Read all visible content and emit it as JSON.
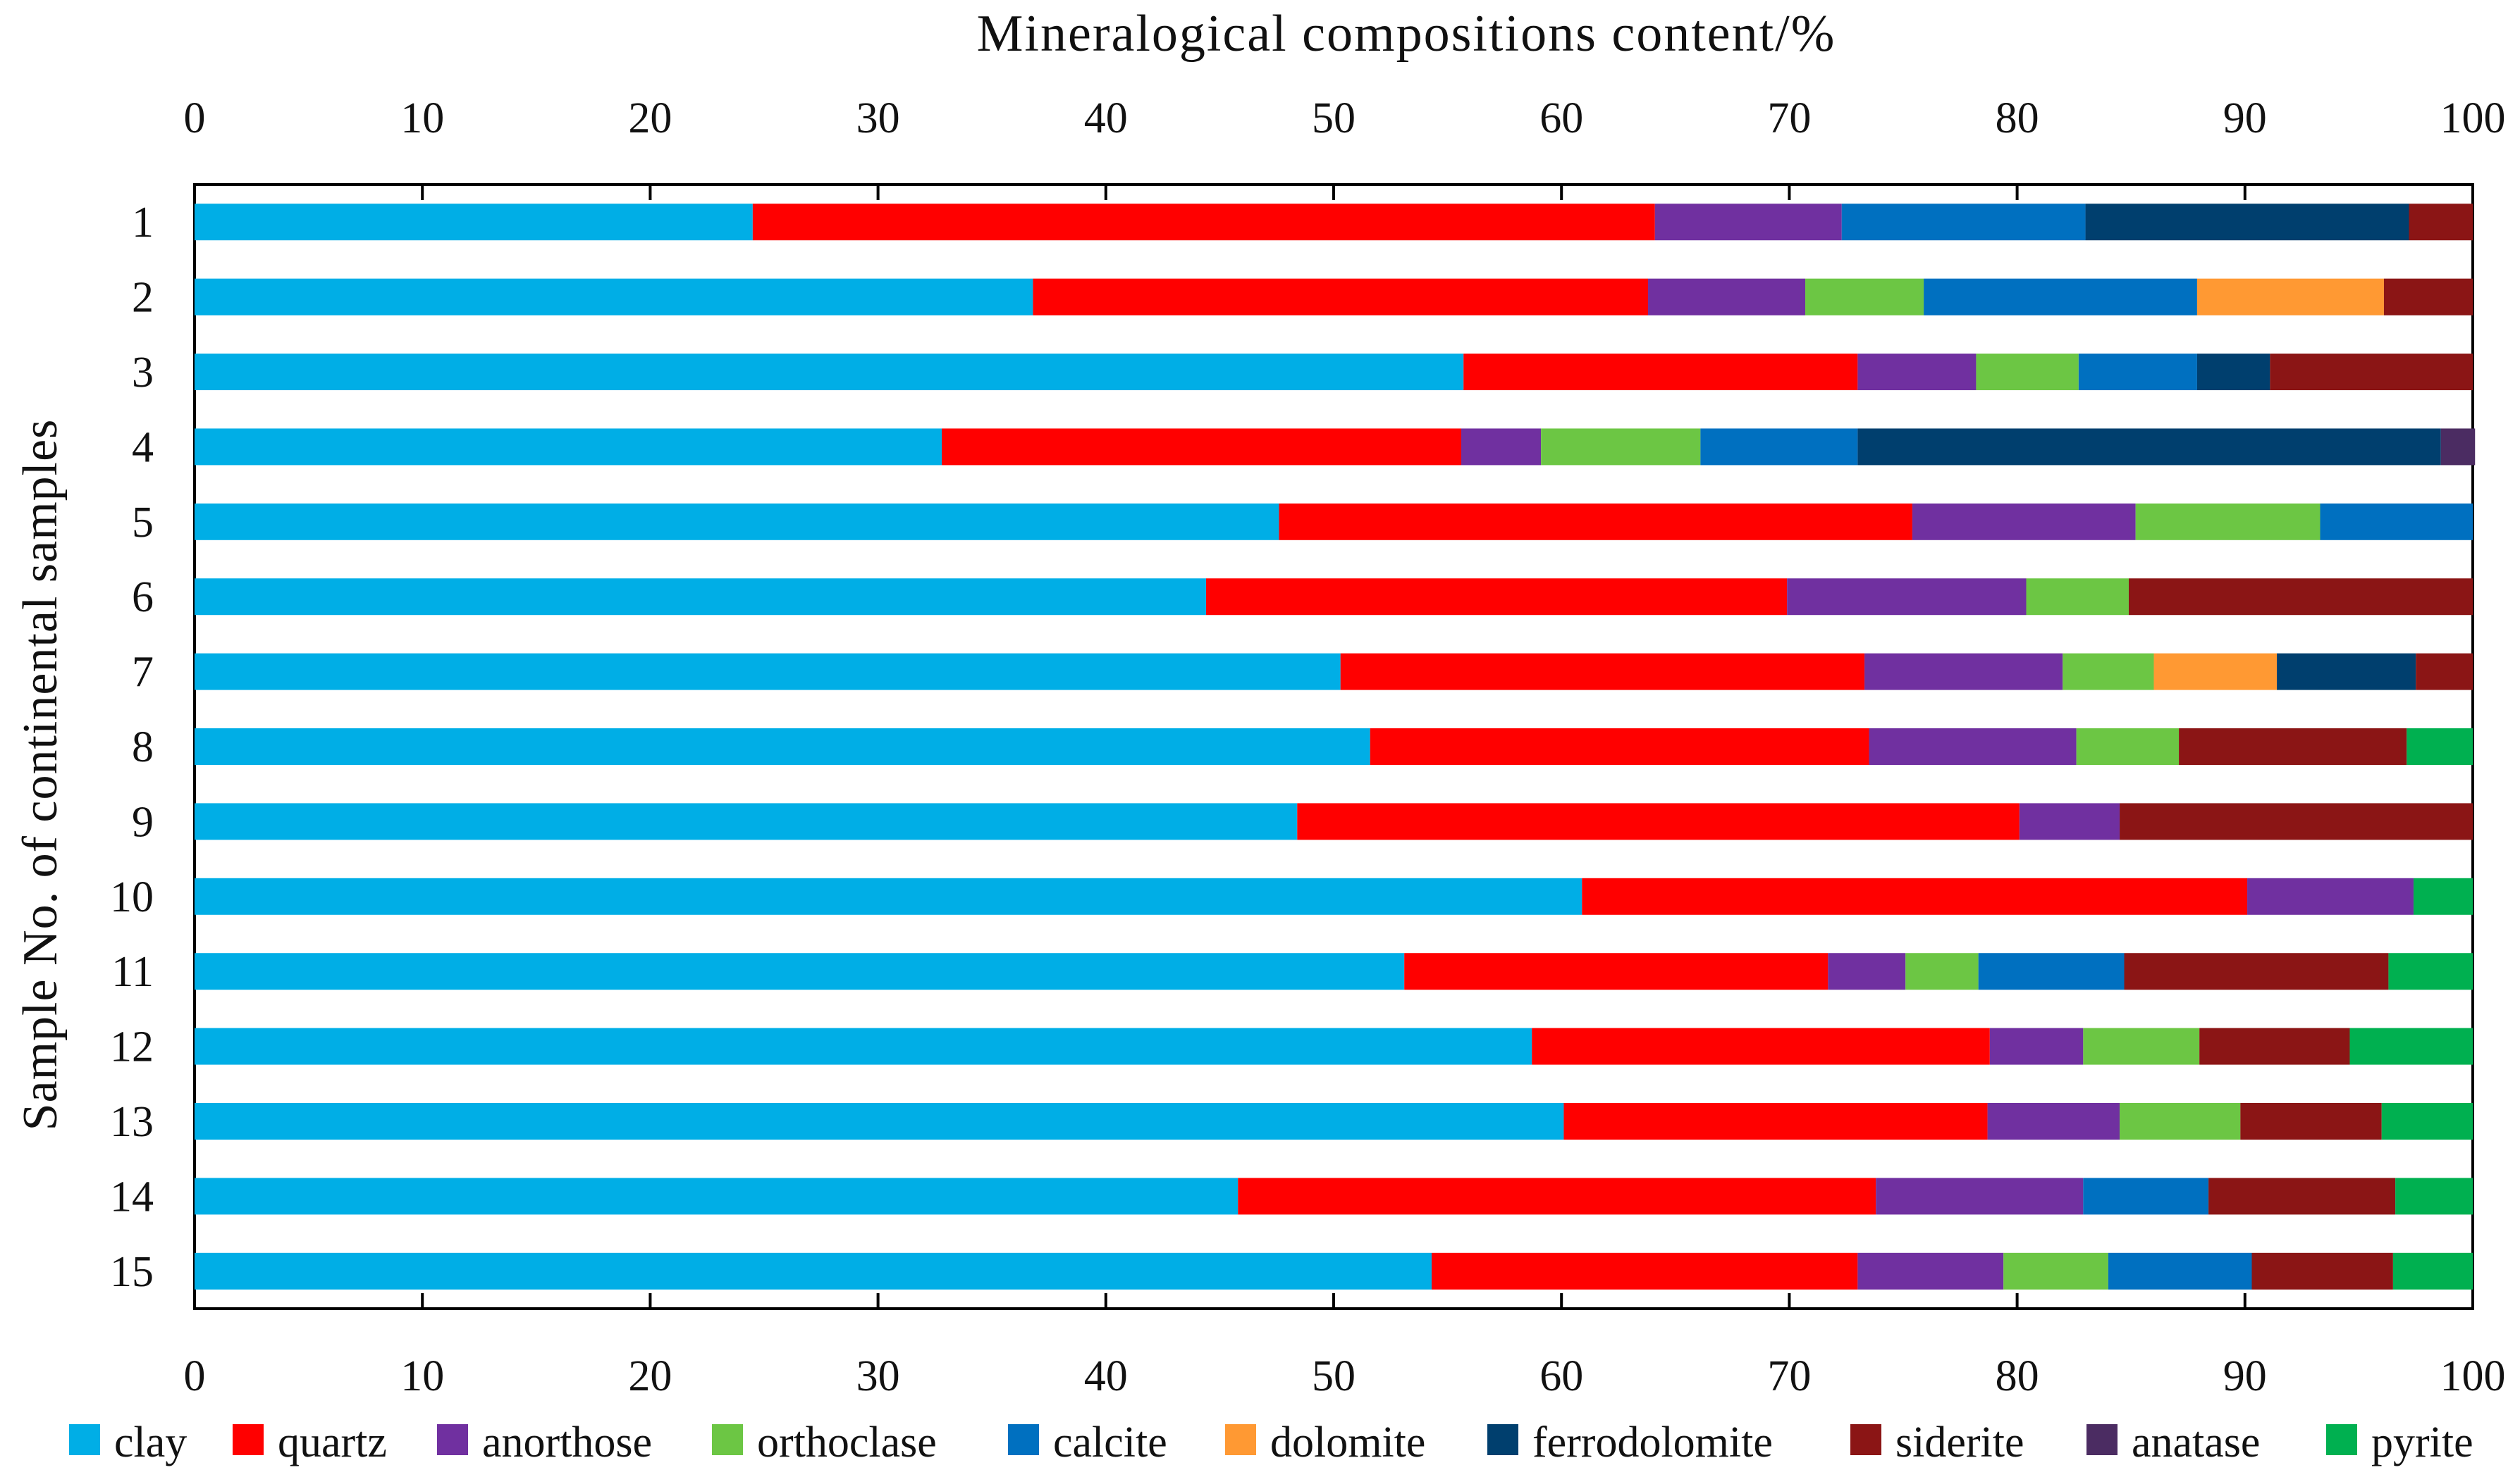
{
  "chart_data": {
    "type": "bar",
    "orientation": "horizontal",
    "stacked": true,
    "title": "Mineralogical compositions  content/%",
    "xlabel": "Mineralogical compositions  content/%",
    "ylabel": "Sample No. of continental samples",
    "xlim": [
      0,
      100
    ],
    "xticks": [
      "0",
      "10",
      "20",
      "30",
      "40",
      "50",
      "60",
      "70",
      "80",
      "90",
      "100"
    ],
    "x_axis_position": "top-and-bottom",
    "grid": false,
    "legend_position": "bottom",
    "categories": [
      "1",
      "2",
      "3",
      "4",
      "5",
      "6",
      "7",
      "8",
      "9",
      "10",
      "11",
      "12",
      "13",
      "14",
      "15"
    ],
    "series": [
      {
        "name": "clay",
        "color": "#00aee6",
        "values": [
          24.5,
          36.8,
          55.7,
          32.8,
          47.6,
          44.4,
          50.3,
          51.6,
          48.4,
          60.9,
          53.1,
          58.7,
          60.1,
          45.8,
          54.3
        ]
      },
      {
        "name": "quartz",
        "color": "#ff0000",
        "values": [
          39.6,
          27.0,
          17.3,
          22.8,
          27.8,
          25.5,
          23.0,
          21.9,
          31.7,
          29.2,
          18.6,
          20.1,
          18.6,
          28.0,
          18.7
        ]
      },
      {
        "name": "anorthose",
        "color": "#7030a0",
        "values": [
          8.2,
          6.9,
          5.2,
          3.5,
          9.8,
          10.5,
          8.7,
          9.1,
          4.4,
          7.3,
          3.4,
          4.1,
          5.8,
          9.1,
          6.4
        ]
      },
      {
        "name": "orthoclase",
        "color": "#6cc644",
        "values": [
          0,
          5.2,
          4.5,
          7.0,
          8.1,
          4.5,
          4.0,
          4.5,
          0,
          0,
          3.2,
          5.1,
          5.3,
          0,
          4.6
        ]
      },
      {
        "name": "calcite",
        "color": "#0070c0",
        "values": [
          10.7,
          12.0,
          5.2,
          6.9,
          6.7,
          0,
          0,
          0,
          0,
          0,
          6.4,
          0,
          0,
          5.5,
          6.3
        ]
      },
      {
        "name": "dolomite",
        "color": "#ff9933",
        "values": [
          0,
          8.2,
          0,
          0,
          0,
          0,
          5.4,
          0,
          0,
          0,
          0,
          0,
          0,
          0,
          0
        ]
      },
      {
        "name": "ferrodolomite",
        "color": "#003f6e",
        "values": [
          14.2,
          0,
          3.2,
          25.6,
          0,
          0,
          6.1,
          0,
          0,
          0,
          0,
          0,
          0,
          0,
          0
        ]
      },
      {
        "name": "siderite",
        "color": "#8b1515",
        "values": [
          2.8,
          3.9,
          8.9,
          0,
          0,
          15.1,
          2.5,
          10.0,
          15.5,
          0,
          11.6,
          6.6,
          6.2,
          8.2,
          6.2
        ]
      },
      {
        "name": "anatase",
        "color": "#4b2c62",
        "values": [
          0,
          0,
          0,
          1.5,
          0,
          0,
          0,
          0,
          0,
          0,
          0,
          0,
          0,
          0,
          0
        ]
      },
      {
        "name": "pyrite",
        "color": "#00b050",
        "values": [
          0,
          0,
          0,
          0,
          0,
          0,
          0,
          2.9,
          0,
          2.6,
          3.7,
          5.4,
          4.0,
          3.4,
          3.5
        ]
      }
    ]
  }
}
